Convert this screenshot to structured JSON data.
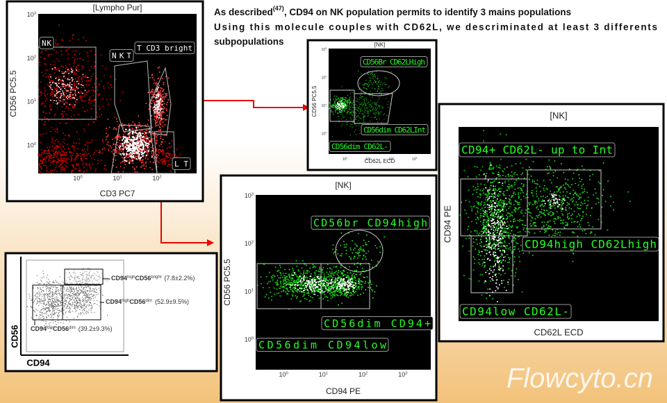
{
  "header": {
    "before": "As described",
    "citation": "(47)",
    "after": ", CD94 on NK population permits to identify 3 mains populations",
    "line2": "Using this molecule couples with CD62L, we descriminated at least 3 differents",
    "line3": "subpopulations"
  },
  "panels": [
    {
      "title": "[Lympho Pur]",
      "x_label": "CD3 PC7",
      "y_label": "CD56 PC5.5",
      "x_ticks": [
        {
          "base": "10",
          "exp": "0"
        },
        {
          "base": "10",
          "exp": "1"
        },
        {
          "base": "10",
          "exp": "2"
        }
      ],
      "y_ticks": [
        {
          "base": "10",
          "exp": "3"
        },
        {
          "base": "10",
          "exp": "2"
        },
        {
          "base": "10",
          "exp": "1"
        },
        {
          "base": "10",
          "exp": "0"
        }
      ],
      "gates": [
        "NK",
        "NKT",
        "T CD3 bright",
        "LT"
      ]
    },
    {
      "title": "[NK]",
      "x_label": "CD62L ECD",
      "y_label": "CD56 PC5.5",
      "x_ticks": [
        {
          "base": "10",
          "exp": "0"
        },
        {
          "base": "10",
          "exp": "1"
        },
        {
          "base": "10",
          "exp": "2"
        },
        {
          "base": "10",
          "exp": "3"
        }
      ],
      "y_ticks": [
        {
          "base": "10",
          "exp": "3"
        },
        {
          "base": "10",
          "exp": "2"
        },
        {
          "base": "10",
          "exp": "1"
        },
        {
          "base": "10",
          "exp": "0"
        }
      ],
      "gates": [
        "CD56Br CD62LHigh",
        "CD56dim CD62LInt",
        "CD56dim CD62L-"
      ]
    },
    {
      "title": "[NK]",
      "x_label": "CD94 PE",
      "y_label": "CD56 PC5.5",
      "x_ticks": [
        {
          "base": "10",
          "exp": "0"
        },
        {
          "base": "10",
          "exp": "1"
        },
        {
          "base": "10",
          "exp": "2"
        },
        {
          "base": "10",
          "exp": "3"
        }
      ],
      "y_ticks": [
        {
          "base": "10",
          "exp": "3"
        },
        {
          "base": "10",
          "exp": "2"
        },
        {
          "base": "10",
          "exp": "1"
        },
        {
          "base": "10",
          "exp": "0"
        }
      ],
      "gates": [
        "CD56br CD94high",
        "CD56dim CD94+",
        "CD56dim CD94low"
      ]
    },
    {
      "title": "[NK]",
      "x_label": "CD62L ECD",
      "y_label": "CD94 PE",
      "gates": [
        "CD94+ CD62L- up to Int",
        "CD94high CD62Lhigh",
        "CD94low CD62L-"
      ]
    }
  ],
  "summary": {
    "x_label": "CD94",
    "y_label": "CD56",
    "annotations": [
      {
        "a": "CD94",
        "a_sup": "high",
        "b": "CD56",
        "b_sup": "bright",
        "pct": "(7.8±2.2%)"
      },
      {
        "a": "CD94",
        "a_sup": "high",
        "b": "CD56",
        "b_sup": "dim",
        "pct": "(52.9±9.5%)"
      },
      {
        "a": "CD94",
        "a_sup": "low",
        "b": "CD56",
        "b_sup": "dim",
        "pct": "(39.2±9.3%)"
      }
    ]
  },
  "watermark": "Flowcyto.cn"
}
